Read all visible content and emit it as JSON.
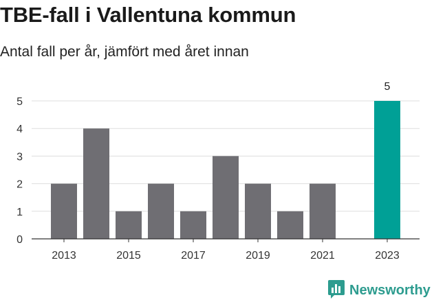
{
  "title": "TBE-fall i Vallentuna kommun",
  "subtitle": "Antal fall per år, jämfört med året innan",
  "brand": {
    "name": "Newsworthy",
    "icon": "newsworthy-logo-icon"
  },
  "colors": {
    "bar": "#6f6e73",
    "highlight": "#00a096",
    "grid": "#dddddd",
    "axis": "#333333",
    "brand": "#2d9c8f"
  },
  "chart_data": {
    "type": "bar",
    "title": "TBE-fall i Vallentuna kommun",
    "subtitle": "Antal fall per år, jämfört med året innan",
    "categories": [
      "2013",
      "2014",
      "2015",
      "2016",
      "2017",
      "2018",
      "2019",
      "2020",
      "2021",
      "2022",
      "2023"
    ],
    "values": [
      2,
      4,
      1,
      2,
      1,
      3,
      2,
      1,
      2,
      0,
      5
    ],
    "highlight": "2023",
    "data_labels": [
      {
        "category": "2023",
        "text": "5"
      }
    ],
    "x_tick_labels": [
      "2013",
      "2015",
      "2017",
      "2019",
      "2021",
      "2023"
    ],
    "y_ticks": [
      0,
      1,
      2,
      3,
      4,
      5
    ],
    "ylim": [
      0,
      5
    ],
    "xlabel": "",
    "ylabel": "",
    "grid": true
  }
}
